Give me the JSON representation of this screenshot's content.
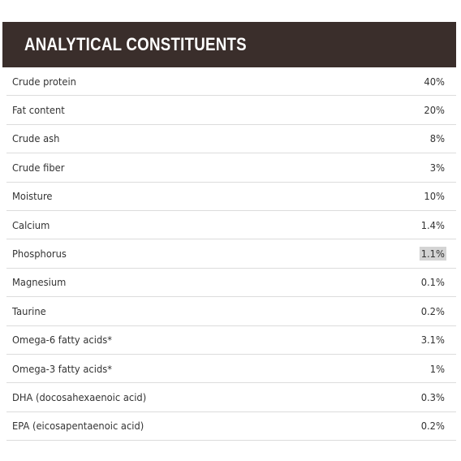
{
  "header": {
    "title": "ANALYTICAL CONSTITUENTS"
  },
  "table": {
    "rows": [
      [
        "Crude protein",
        "40%"
      ],
      [
        "Fat content",
        "20%"
      ],
      [
        "Crude ash",
        "8%"
      ],
      [
        "Crude fiber",
        "3%"
      ],
      [
        "Moisture",
        "10%"
      ],
      [
        "Calcium",
        "1.4%"
      ],
      [
        "Phosphorus",
        "1.1%"
      ],
      [
        "Magnesium",
        "0.1%"
      ],
      [
        "Taurine",
        "0.2%"
      ],
      [
        "Omega-6 fatty acids*",
        "3.1%"
      ],
      [
        "Omega-3 fatty acids*",
        "1%"
      ],
      [
        "DHA (docosahexaenoic acid)",
        "0.3%"
      ],
      [
        "EPA (eicosapentaenoic acid)",
        "0.2%"
      ]
    ]
  }
}
